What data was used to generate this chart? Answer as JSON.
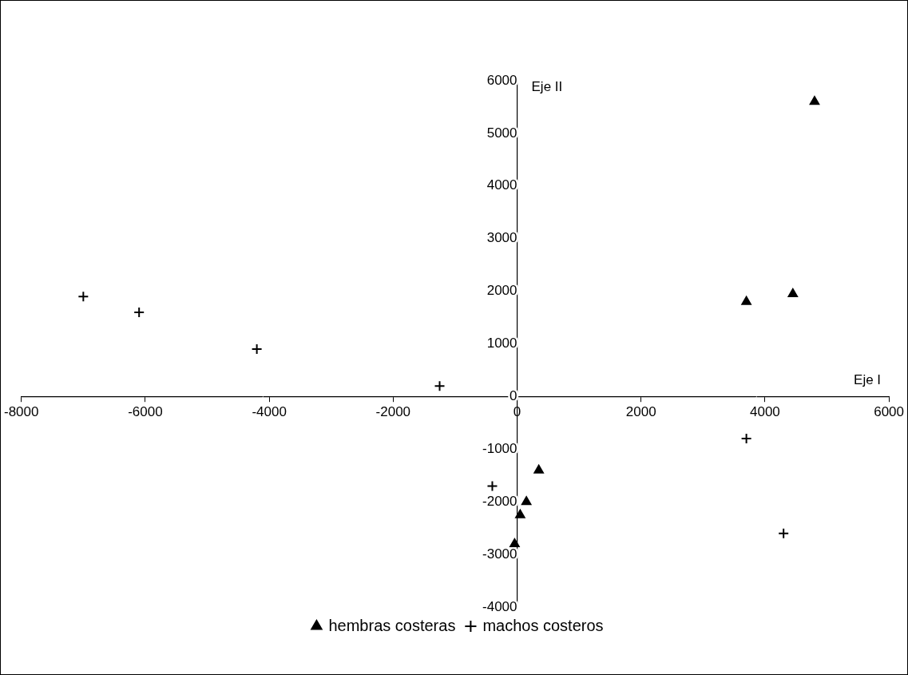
{
  "chart_data": {
    "type": "scatter",
    "xlabel": "Eje I",
    "ylabel": "Eje II",
    "xlim": [
      -8000,
      6000
    ],
    "xticks": [
      -8000,
      -6000,
      -4000,
      -2000,
      0,
      2000,
      4000,
      6000
    ],
    "ylim": [
      -4000,
      6000
    ],
    "yticks": [
      -4000,
      -3000,
      -2000,
      -1000,
      0,
      1000,
      2000,
      3000,
      4000,
      5000,
      6000
    ],
    "grid": false,
    "legend": "bottom",
    "series": [
      {
        "name": "hembras costeras",
        "color": "#000000",
        "marker": "triangle",
        "x": [
          4800,
          4450,
          3700,
          350,
          150,
          50,
          -40
        ],
        "values": [
          5600,
          1950,
          1800,
          -1400,
          -2000,
          -2250,
          -2800
        ]
      },
      {
        "name": "machos costeros",
        "color": "#000000",
        "marker": "cross",
        "x": [
          -7000,
          -6100,
          -4200,
          -1250,
          -400,
          3700,
          4300
        ],
        "values": [
          1900,
          1600,
          900,
          200,
          -1700,
          -800,
          -2600
        ]
      }
    ]
  }
}
